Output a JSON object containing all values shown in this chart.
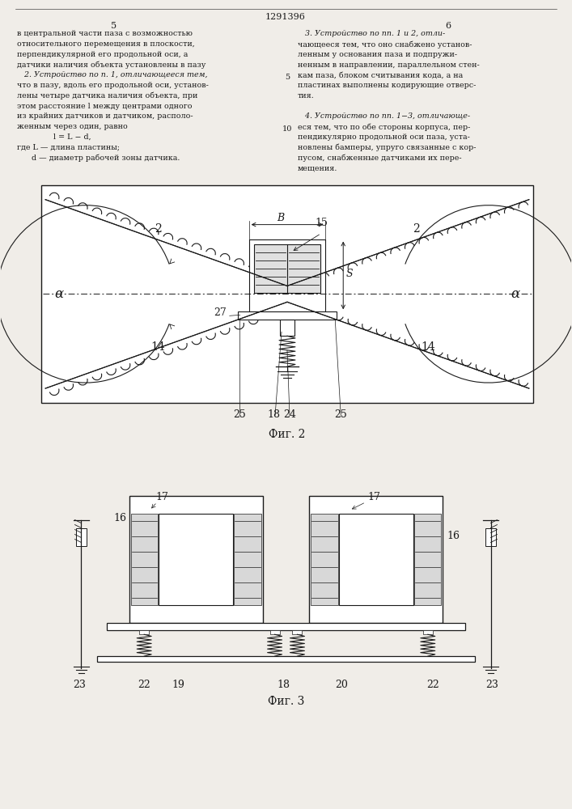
{
  "page_width": 7.07,
  "page_height": 10.0,
  "bg_color": "#f0ede8",
  "line_color": "#1a1a1a",
  "patent_number": "1291396",
  "col_num_left": "5",
  "col_num_right": "6",
  "text_left": [
    "в центральной части паза с возможностью",
    "относительного перемещения в плоскости,",
    "перпендикулярной его продольной оси, а",
    "датчики наличия объекта установлены в пазу",
    "   2. Устройство по п. 1, отличающееся тем,",
    "что в пазу, вдоль его продольной оси, установ-",
    "лены четыре датчика наличия объекта, при",
    "этом расстояние l между центрами одного",
    "из крайних датчиков и датчиком, располо-",
    "женным через один, равно",
    "               l = L − d,",
    "где L — длина пластины;",
    "      d — диаметр рабочей зоны датчика."
  ],
  "text_right": [
    "   3. Устройство по пп. 1 и 2, отли-",
    "чающееся тем, что оно снабжено установ-",
    "ленным у основания паза и подпружи-",
    "ненным в направлении, параллельном стен-",
    "кам паза, блоком считывания кода, а на",
    "пластинах выполнены кодирующие отверс-",
    "тия.",
    "",
    "   4. Устройство по пп. 1−3, отличающе-",
    "еся тем, что по обе стороны корпуса, пер-",
    "пендикулярно продольной оси паза, уста-",
    "новлены бамперы, упруго связанные с кор-",
    "пусом, снабженные датчиками их пере-",
    "мещения."
  ],
  "fig2_caption": "Фиг. 2",
  "fig3_caption": "Фиг. 3"
}
